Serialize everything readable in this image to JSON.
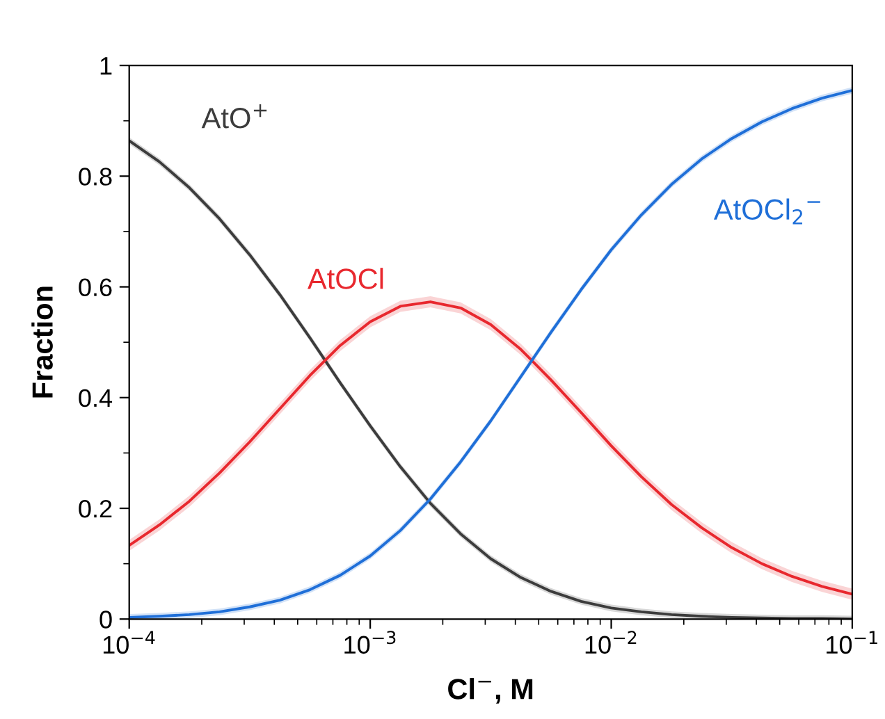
{
  "chart_data": {
    "type": "line",
    "xlabel": "Cl$^{−}$, M",
    "ylabel": "Fraction",
    "log": "x",
    "grid": false,
    "legend": false,
    "marker": "none",
    "line_style": "solid",
    "xlim": [
      0.0001,
      0.1
    ],
    "xticks": [
      {
        "value": 0.0001,
        "label": "10$^{−4}$"
      },
      {
        "value": 0.001,
        "label": "10$^{−3}$"
      },
      {
        "value": 0.01,
        "label": "10$^{−2}$"
      },
      {
        "value": 0.1,
        "label": "10$^{−1}$"
      }
    ],
    "ylim": [
      0,
      1
    ],
    "yticks": [
      0,
      0.2,
      0.4,
      0.6,
      0.8,
      1
    ],
    "x": [
      0.0001,
      0.0001334,
      0.0001778,
      0.0002371,
      0.0003162,
      0.0004217,
      0.0005623,
      0.0007499,
      0.001,
      0.001334,
      0.001778,
      0.002371,
      0.003162,
      0.004217,
      0.005623,
      0.007499,
      0.01,
      0.01334,
      0.01778,
      0.02371,
      0.03162,
      0.04217,
      0.05623,
      0.07499,
      0.1
    ],
    "series": [
      {
        "name": "AtO$^{+}$",
        "color": "#3c3c3c",
        "values": [
          0.864,
          0.826,
          0.779,
          0.723,
          0.658,
          0.586,
          0.508,
          0.427,
          0.349,
          0.275,
          0.209,
          0.154,
          0.109,
          0.075,
          0.05,
          0.032,
          0.02,
          0.013,
          0.008,
          0.005,
          0.003,
          0.002,
          0.001,
          0.001,
          0.0
        ],
        "lower": [
          0.858,
          0.82,
          0.773,
          0.717,
          0.652,
          0.58,
          0.502,
          0.421,
          0.343,
          0.269,
          0.203,
          0.148,
          0.103,
          0.069,
          0.044,
          0.026,
          0.014,
          0.007,
          0.002,
          0,
          0,
          0,
          0,
          0,
          0
        ],
        "upper": [
          0.87,
          0.832,
          0.785,
          0.729,
          0.664,
          0.592,
          0.514,
          0.433,
          0.355,
          0.281,
          0.215,
          0.16,
          0.115,
          0.081,
          0.056,
          0.038,
          0.026,
          0.019,
          0.014,
          0.011,
          0.009,
          0.008,
          0.007,
          0.007,
          0.006
        ]
      },
      {
        "name": "AtOCl",
        "color": "#e8282e",
        "values": [
          0.133,
          0.17,
          0.213,
          0.264,
          0.32,
          0.38,
          0.44,
          0.494,
          0.537,
          0.565,
          0.573,
          0.562,
          0.532,
          0.487,
          0.432,
          0.373,
          0.313,
          0.257,
          0.207,
          0.165,
          0.129,
          0.1,
          0.077,
          0.059,
          0.045
        ],
        "lower": [
          0.123,
          0.16,
          0.203,
          0.254,
          0.31,
          0.37,
          0.43,
          0.484,
          0.527,
          0.555,
          0.563,
          0.552,
          0.522,
          0.477,
          0.422,
          0.363,
          0.303,
          0.247,
          0.197,
          0.155,
          0.119,
          0.09,
          0.067,
          0.049,
          0.035
        ],
        "upper": [
          0.143,
          0.18,
          0.223,
          0.274,
          0.33,
          0.39,
          0.45,
          0.504,
          0.547,
          0.575,
          0.583,
          0.572,
          0.542,
          0.497,
          0.442,
          0.383,
          0.323,
          0.267,
          0.217,
          0.175,
          0.139,
          0.11,
          0.087,
          0.069,
          0.055
        ]
      },
      {
        "name": "AtOCl$_{2}$$^{−}$",
        "color": "#1f6fd8",
        "values": [
          0.003,
          0.005,
          0.008,
          0.013,
          0.022,
          0.034,
          0.053,
          0.079,
          0.114,
          0.16,
          0.217,
          0.284,
          0.358,
          0.438,
          0.518,
          0.595,
          0.667,
          0.73,
          0.785,
          0.831,
          0.868,
          0.898,
          0.922,
          0.941,
          0.955
        ],
        "lower": [
          0,
          0,
          0.002,
          0.007,
          0.016,
          0.028,
          0.047,
          0.073,
          0.108,
          0.154,
          0.211,
          0.278,
          0.352,
          0.432,
          0.512,
          0.589,
          0.661,
          0.724,
          0.779,
          0.825,
          0.862,
          0.892,
          0.916,
          0.935,
          0.949
        ],
        "upper": [
          0.009,
          0.011,
          0.014,
          0.019,
          0.028,
          0.04,
          0.059,
          0.085,
          0.12,
          0.166,
          0.223,
          0.29,
          0.364,
          0.444,
          0.524,
          0.601,
          0.673,
          0.736,
          0.791,
          0.837,
          0.874,
          0.904,
          0.928,
          0.947,
          0.961
        ]
      }
    ]
  }
}
